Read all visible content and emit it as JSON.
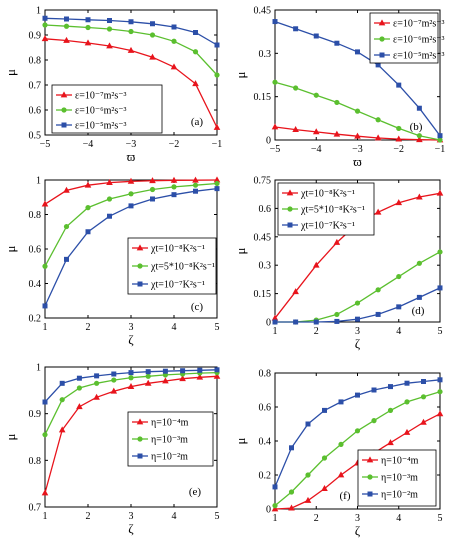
{
  "colors": {
    "red": "#e8141c",
    "green": "#5bbf2f",
    "blue": "#2c4fa8"
  },
  "chart_data": [
    {
      "id": "a",
      "type": "line",
      "panel_label": "(a)",
      "xlabel": "ϖ",
      "ylabel": "μ",
      "xlim": [
        -5,
        -1
      ],
      "ylim": [
        0.5,
        1
      ],
      "xticks": [
        -5,
        -4,
        -3,
        -2,
        -1
      ],
      "xticklabels": [
        "−5",
        "−4",
        "−3",
        "−2",
        "−1"
      ],
      "yticks": [
        0.5,
        0.6,
        0.7,
        0.8,
        0.9,
        1
      ],
      "yticklabels": [
        "0.5",
        "0.6",
        "0.7",
        "0.8",
        "0.9",
        "1"
      ],
      "legend_position": "bottom-left",
      "series": [
        {
          "name": "ε=10⁻⁷m²s⁻³",
          "color": "red",
          "marker": "triangle",
          "x": [
            -5,
            -4.5,
            -4,
            -3.5,
            -3,
            -2.5,
            -2,
            -1.5,
            -1
          ],
          "y": [
            0.885,
            0.878,
            0.868,
            0.856,
            0.838,
            0.811,
            0.772,
            0.705,
            0.53
          ]
        },
        {
          "name": "ε=10⁻⁶m²s⁻³",
          "color": "green",
          "marker": "circle",
          "x": [
            -5,
            -4.5,
            -4,
            -3.5,
            -3,
            -2.5,
            -2,
            -1.5,
            -1
          ],
          "y": [
            0.94,
            0.935,
            0.93,
            0.924,
            0.914,
            0.9,
            0.875,
            0.833,
            0.74
          ]
        },
        {
          "name": "ε=10⁻⁵m²s⁻³",
          "color": "blue",
          "marker": "square",
          "x": [
            -5,
            -4.5,
            -4,
            -3.5,
            -3,
            -2.5,
            -2,
            -1.5,
            -1
          ],
          "y": [
            0.967,
            0.964,
            0.961,
            0.958,
            0.953,
            0.945,
            0.932,
            0.91,
            0.86
          ]
        }
      ]
    },
    {
      "id": "b",
      "type": "line",
      "panel_label": "(b)",
      "xlabel": "ϖ",
      "ylabel": "μ",
      "xlim": [
        -5,
        -1
      ],
      "ylim": [
        0,
        0.45
      ],
      "xticks": [
        -5,
        -4,
        -3,
        -2,
        -1
      ],
      "xticklabels": [
        "−5",
        "−4",
        "−3",
        "−2",
        "−1"
      ],
      "yticks": [
        0,
        0.15,
        0.3,
        0.45
      ],
      "yticklabels": [
        "0",
        "0.15",
        "0.3",
        "0.45"
      ],
      "legend_position": "top-right",
      "series": [
        {
          "name": "ε=10⁻⁷m²s⁻³",
          "color": "red",
          "marker": "triangle",
          "x": [
            -5,
            -4.5,
            -4,
            -3.5,
            -3,
            -2.5,
            -2,
            -1.5,
            -1
          ],
          "y": [
            0.045,
            0.036,
            0.028,
            0.02,
            0.013,
            0.007,
            0.003,
            0.001,
            0
          ]
        },
        {
          "name": "ε=10⁻⁶m²s⁻³",
          "color": "green",
          "marker": "circle",
          "x": [
            -5,
            -4.5,
            -4,
            -3.5,
            -3,
            -2.5,
            -2,
            -1.5,
            -1
          ],
          "y": [
            0.2,
            0.18,
            0.155,
            0.13,
            0.1,
            0.07,
            0.04,
            0.015,
            0
          ]
        },
        {
          "name": "ε=10⁻⁵m²s⁻³",
          "color": "blue",
          "marker": "square",
          "x": [
            -5,
            -4.5,
            -4,
            -3.5,
            -3,
            -2.5,
            -2,
            -1.5,
            -1
          ],
          "y": [
            0.41,
            0.385,
            0.36,
            0.335,
            0.305,
            0.26,
            0.19,
            0.11,
            0.015
          ]
        }
      ]
    },
    {
      "id": "c",
      "type": "line",
      "panel_label": "(c)",
      "xlabel": "ζ",
      "ylabel": "μ",
      "xlim": [
        1,
        5
      ],
      "ylim": [
        0.2,
        1
      ],
      "xticks": [
        1,
        2,
        3,
        4,
        5
      ],
      "xticklabels": [
        "1",
        "2",
        "3",
        "4",
        "5"
      ],
      "yticks": [
        0.2,
        0.4,
        0.6,
        0.8,
        1
      ],
      "yticklabels": [
        "0.2",
        "0.4",
        "0.6",
        "0.8",
        "1"
      ],
      "legend_position": "bottom-right",
      "series": [
        {
          "name": "χt=10⁻⁸K²s⁻¹",
          "color": "red",
          "marker": "triangle",
          "x": [
            1,
            1.5,
            2,
            2.5,
            3,
            3.5,
            4,
            4.5,
            5
          ],
          "y": [
            0.86,
            0.94,
            0.97,
            0.985,
            0.992,
            0.996,
            0.998,
            0.999,
            1.0
          ]
        },
        {
          "name": "χt=5*10⁻⁸K²s⁻¹",
          "color": "green",
          "marker": "circle",
          "x": [
            1,
            1.5,
            2,
            2.5,
            3,
            3.5,
            4,
            4.5,
            5
          ],
          "y": [
            0.5,
            0.73,
            0.84,
            0.89,
            0.92,
            0.945,
            0.96,
            0.97,
            0.98
          ]
        },
        {
          "name": "χt=10⁻⁷K²s⁻¹",
          "color": "blue",
          "marker": "square",
          "x": [
            1,
            1.5,
            2,
            2.5,
            3,
            3.5,
            4,
            4.5,
            5
          ],
          "y": [
            0.27,
            0.54,
            0.7,
            0.79,
            0.85,
            0.89,
            0.915,
            0.935,
            0.95
          ]
        }
      ]
    },
    {
      "id": "d",
      "type": "line",
      "panel_label": "(d)",
      "xlabel": "ζ",
      "ylabel": "μ",
      "xlim": [
        1,
        5
      ],
      "ylim": [
        0,
        0.75
      ],
      "xticks": [
        1,
        2,
        3,
        4,
        5
      ],
      "xticklabels": [
        "1",
        "2",
        "3",
        "4",
        "5"
      ],
      "yticks": [
        0,
        0.15,
        0.3,
        0.45,
        0.6,
        0.75
      ],
      "yticklabels": [
        "0",
        "0.15",
        "0.3",
        "0.45",
        "0.6",
        "0.75"
      ],
      "legend_position": "top-left",
      "series": [
        {
          "name": "χt=10⁻⁸K²s⁻¹",
          "color": "red",
          "marker": "triangle",
          "x": [
            1,
            1.5,
            2,
            2.5,
            3,
            3.5,
            4,
            4.5,
            5
          ],
          "y": [
            0.02,
            0.16,
            0.3,
            0.42,
            0.52,
            0.58,
            0.63,
            0.66,
            0.68
          ]
        },
        {
          "name": "χt=5*10⁻⁸K²s⁻¹",
          "color": "green",
          "marker": "circle",
          "x": [
            1,
            1.5,
            2,
            2.5,
            3,
            3.5,
            4,
            4.5,
            5
          ],
          "y": [
            0,
            0,
            0.01,
            0.04,
            0.1,
            0.17,
            0.24,
            0.31,
            0.37
          ]
        },
        {
          "name": "χt=10⁻⁷K²s⁻¹",
          "color": "blue",
          "marker": "square",
          "x": [
            1,
            1.5,
            2,
            2.5,
            3,
            3.5,
            4,
            4.5,
            5
          ],
          "y": [
            0,
            0,
            0,
            0.003,
            0.015,
            0.04,
            0.08,
            0.13,
            0.18
          ]
        }
      ]
    },
    {
      "id": "e",
      "type": "line",
      "panel_label": "(e)",
      "xlabel": "ζ",
      "ylabel": "μ",
      "xlim": [
        1,
        5
      ],
      "ylim": [
        0.7,
        1
      ],
      "xticks": [
        1,
        2,
        3,
        4,
        5
      ],
      "xticklabels": [
        "1",
        "2",
        "3",
        "4",
        "5"
      ],
      "yticks": [
        0.7,
        0.8,
        0.9,
        1
      ],
      "yticklabels": [
        "0.7",
        "0.8",
        "0.9",
        "1"
      ],
      "legend_position": "center-right",
      "series": [
        {
          "name": "η=10⁻⁴m",
          "color": "red",
          "marker": "triangle",
          "x": [
            1,
            1.4,
            1.8,
            2.2,
            2.6,
            3,
            3.4,
            3.8,
            4.2,
            4.6,
            5
          ],
          "y": [
            0.73,
            0.865,
            0.915,
            0.935,
            0.948,
            0.958,
            0.965,
            0.97,
            0.975,
            0.978,
            0.98
          ]
        },
        {
          "name": "η=10⁻³m",
          "color": "green",
          "marker": "circle",
          "x": [
            1,
            1.4,
            1.8,
            2.2,
            2.6,
            3,
            3.4,
            3.8,
            4.2,
            4.6,
            5
          ],
          "y": [
            0.855,
            0.93,
            0.955,
            0.965,
            0.972,
            0.977,
            0.98,
            0.983,
            0.985,
            0.987,
            0.988
          ]
        },
        {
          "name": "η=10⁻²m",
          "color": "blue",
          "marker": "square",
          "x": [
            1,
            1.4,
            1.8,
            2.2,
            2.6,
            3,
            3.4,
            3.8,
            4.2,
            4.6,
            5
          ],
          "y": [
            0.925,
            0.965,
            0.976,
            0.981,
            0.985,
            0.988,
            0.99,
            0.991,
            0.992,
            0.993,
            0.994
          ]
        }
      ]
    },
    {
      "id": "f",
      "type": "line",
      "panel_label": "(f)",
      "xlabel": "ζ",
      "ylabel": "μ",
      "xlim": [
        1,
        5
      ],
      "ylim": [
        0,
        0.8
      ],
      "xticks": [
        1,
        2,
        3,
        4,
        5
      ],
      "xticklabels": [
        "1",
        "2",
        "3",
        "4",
        "5"
      ],
      "yticks": [
        0,
        0.2,
        0.4,
        0.6,
        0.8
      ],
      "yticklabels": [
        "0",
        "0.2",
        "0.4",
        "0.6",
        "0.8"
      ],
      "legend_position": "bottom-right",
      "series": [
        {
          "name": "η=10⁻⁴m",
          "color": "red",
          "marker": "triangle",
          "x": [
            1,
            1.4,
            1.8,
            2.2,
            2.6,
            3,
            3.4,
            3.8,
            4.2,
            4.6,
            5
          ],
          "y": [
            0,
            0.005,
            0.05,
            0.12,
            0.2,
            0.27,
            0.33,
            0.39,
            0.45,
            0.51,
            0.56
          ]
        },
        {
          "name": "η=10⁻³m",
          "color": "green",
          "marker": "circle",
          "x": [
            1,
            1.4,
            1.8,
            2.2,
            2.6,
            3,
            3.4,
            3.8,
            4.2,
            4.6,
            5
          ],
          "y": [
            0.02,
            0.1,
            0.2,
            0.3,
            0.38,
            0.46,
            0.52,
            0.58,
            0.63,
            0.66,
            0.69
          ]
        },
        {
          "name": "η=10⁻²m",
          "color": "blue",
          "marker": "square",
          "x": [
            1,
            1.4,
            1.8,
            2.2,
            2.6,
            3,
            3.4,
            3.8,
            4.2,
            4.6,
            5
          ],
          "y": [
            0.13,
            0.36,
            0.5,
            0.58,
            0.63,
            0.67,
            0.7,
            0.72,
            0.74,
            0.75,
            0.76
          ]
        }
      ]
    }
  ]
}
